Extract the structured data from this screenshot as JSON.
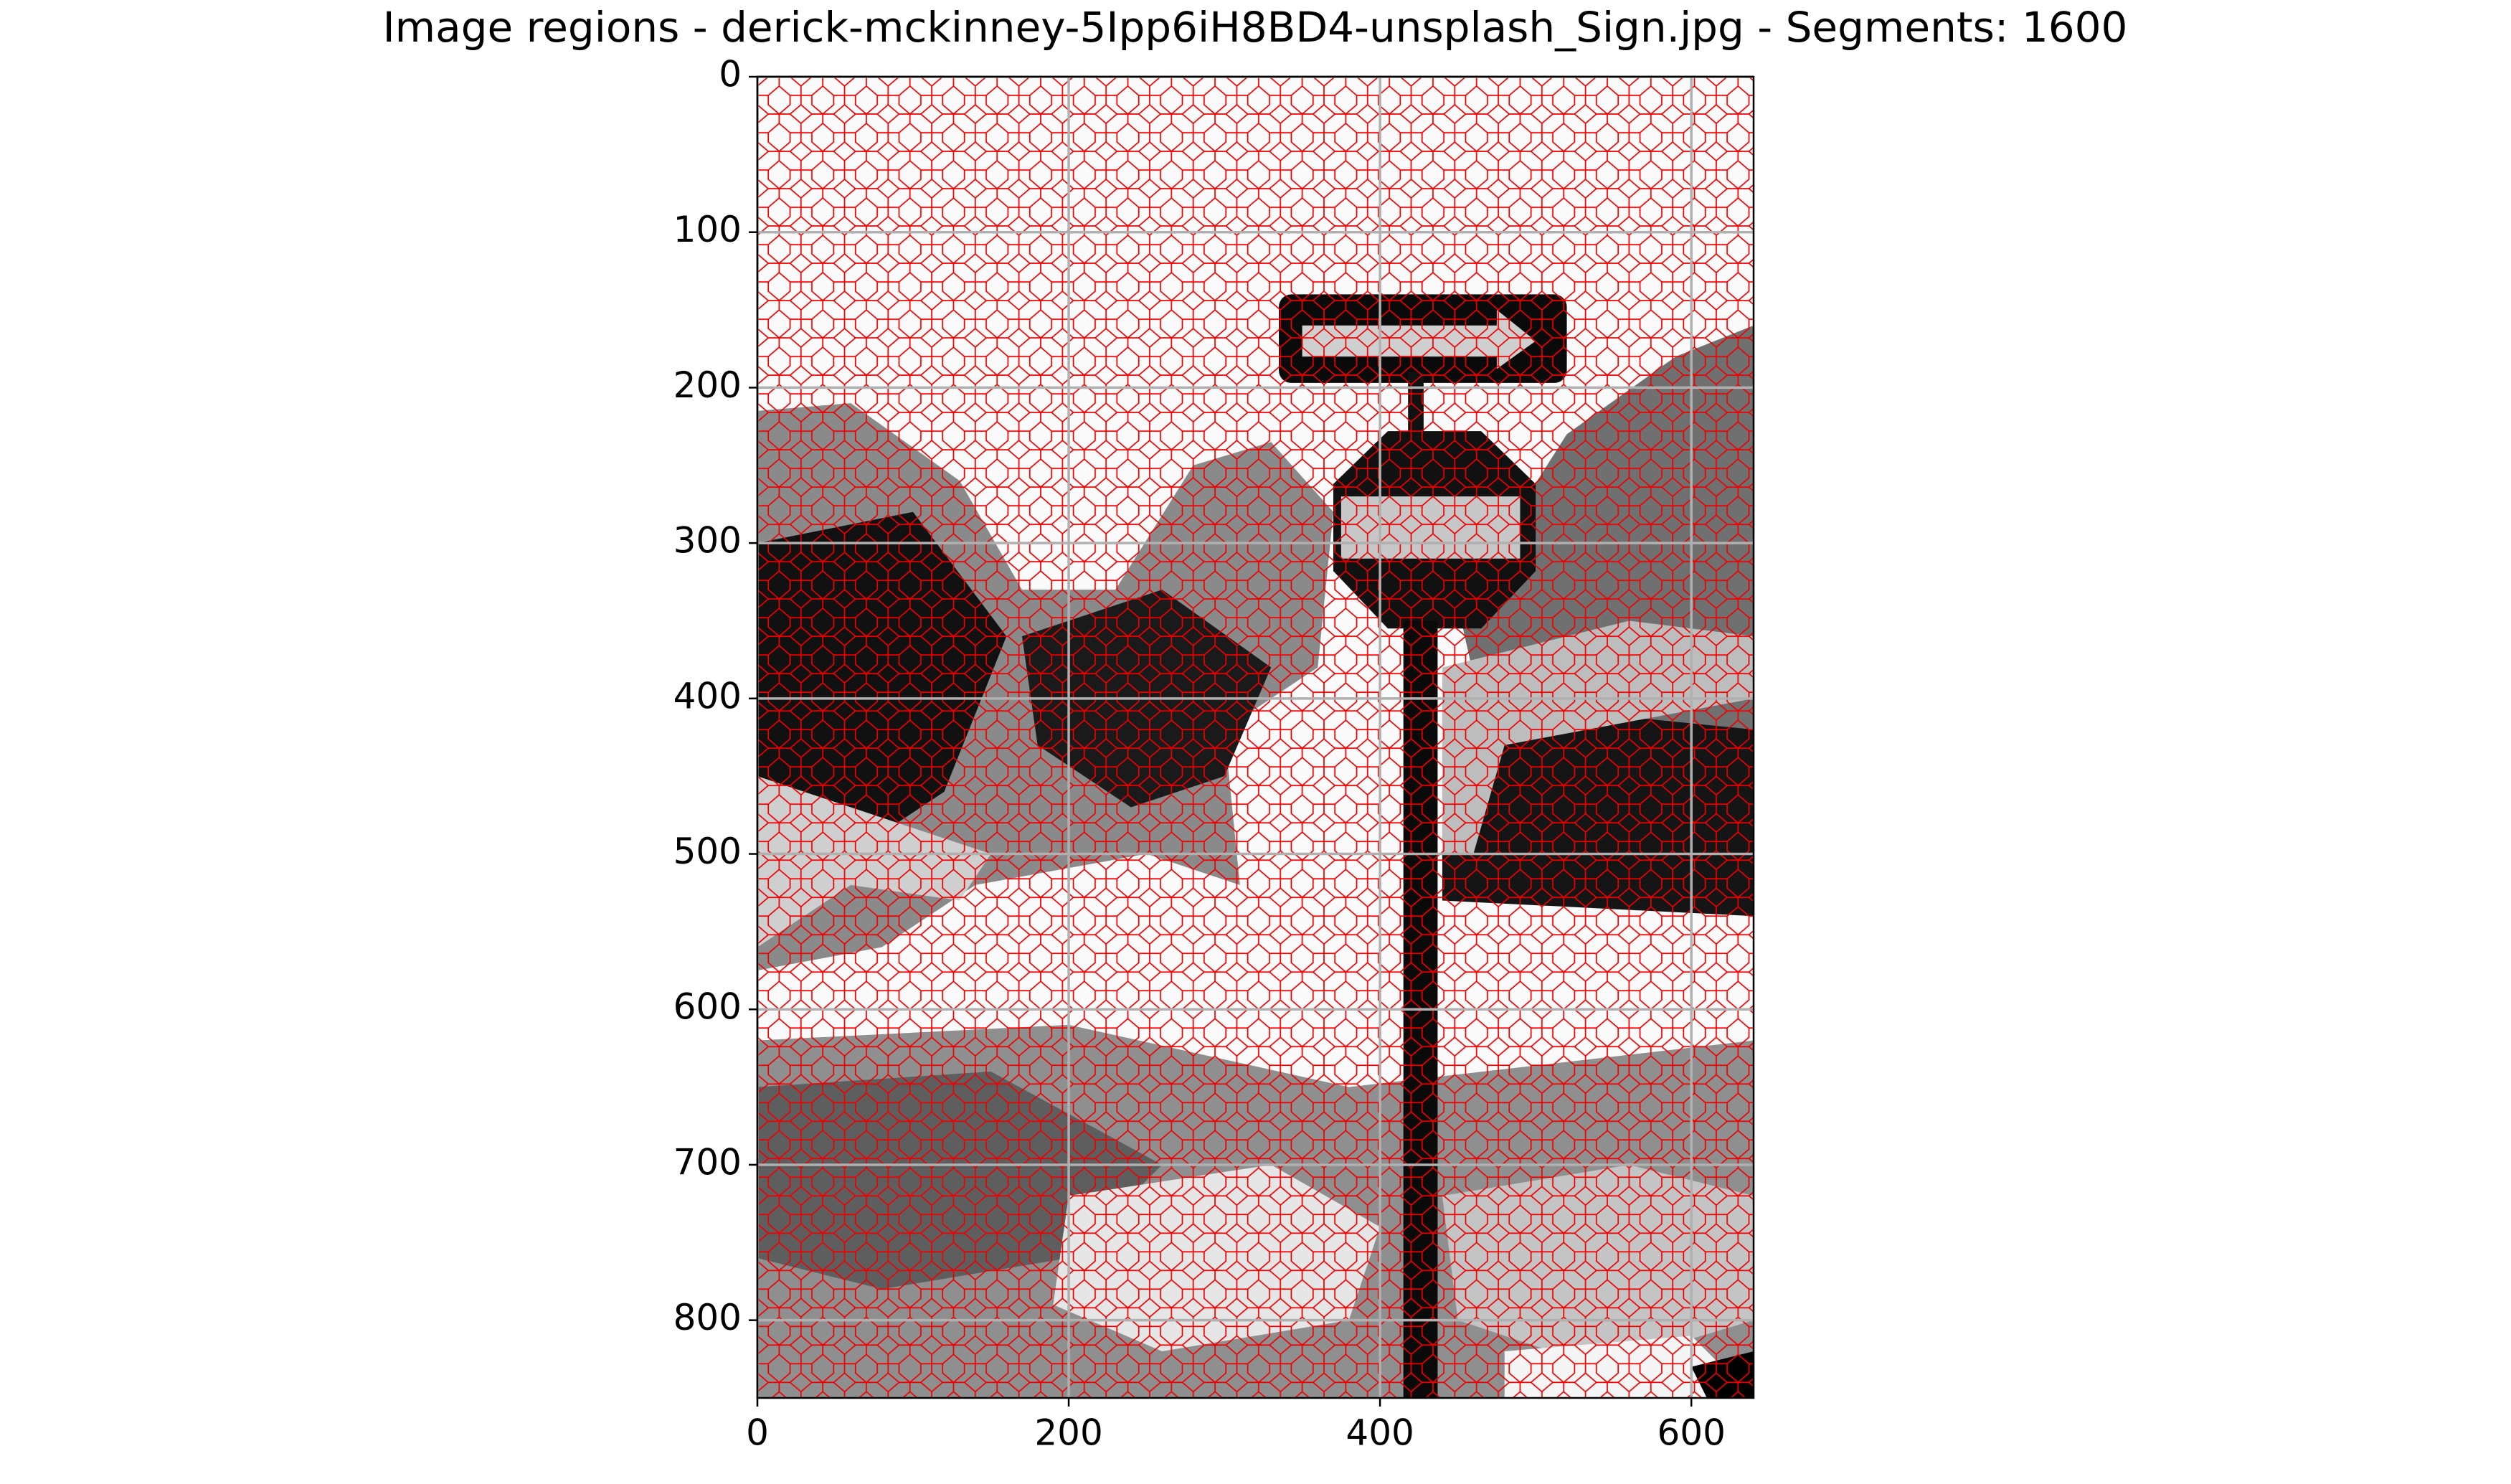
{
  "chart_data": {
    "type": "image",
    "title": "Image regions - derick-mckinney-5Ipp6iH8BD4-unsplash_Sign.jpg - Segments: 1600",
    "xlim": [
      0,
      640
    ],
    "ylim": [
      850,
      0
    ],
    "xticks": [
      0,
      200,
      400,
      600
    ],
    "yticks": [
      0,
      100,
      200,
      300,
      400,
      500,
      600,
      700,
      800
    ],
    "grid": true
  }
}
